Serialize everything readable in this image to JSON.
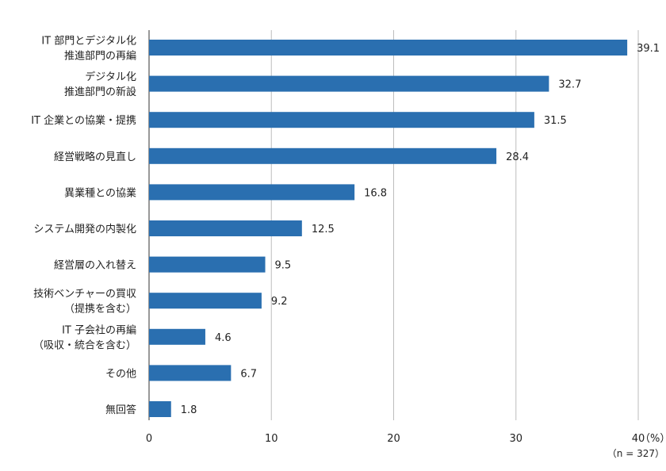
{
  "chart_data": {
    "type": "bar",
    "orientation": "horizontal",
    "categories": [
      [
        "IT 部門とデジタル化",
        "推進部門の再編"
      ],
      [
        "デジタル化",
        "推進部門の新設"
      ],
      [
        "IT 企業との協業・提携"
      ],
      [
        "経営戦略の見直し"
      ],
      [
        "異業種との協業"
      ],
      [
        "システム開発の内製化"
      ],
      [
        "経営層の入れ替え"
      ],
      [
        "技術ベンチャーの買収",
        "（提携を含む）"
      ],
      [
        "IT 子会社の再編",
        "（吸収・統合を含む）"
      ],
      [
        "その他"
      ],
      [
        "無回答"
      ]
    ],
    "values": [
      39.1,
      32.7,
      31.5,
      28.4,
      16.8,
      12.5,
      9.5,
      9.2,
      4.6,
      6.7,
      1.8
    ],
    "value_labels": [
      "39.1",
      "32.7",
      "31.5",
      "28.4",
      "16.8",
      "12.5",
      "9.5",
      "9.2",
      "4.6",
      "6.7",
      "1.8"
    ],
    "xlim": [
      0,
      40
    ],
    "xticks": [
      0,
      10,
      20,
      30,
      40
    ],
    "xtick_labels": [
      "0",
      "10",
      "20",
      "30",
      "40"
    ],
    "unit_label": "（%）",
    "sample_note": "（n = 327）",
    "grid": true,
    "colors": {
      "bar": "#2a6fb0",
      "grid": "#bdbdbd",
      "axis": "#555555"
    }
  }
}
